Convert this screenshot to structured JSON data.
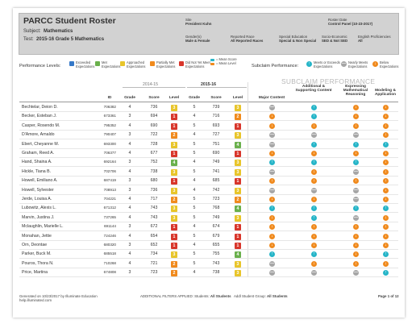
{
  "header": {
    "title": "PARCC Student Roster",
    "subject_label": "Subject:",
    "subject_value": "Mathematics",
    "test_label": "Test:",
    "test_value": "2015-16 Grade 5 Mathematics",
    "site_label": "Site",
    "site_value": "President Kuhn",
    "roster_label": "Roster Date",
    "roster_value": "Control Panel (10-23-2017)",
    "gender_label": "Gender(s)",
    "gender_value": "Male & Female",
    "race_label": "Reported Race",
    "race_value": "All Reported Races",
    "sped_label": "Special Education",
    "sped_value": "Special & Non Special",
    "ses_label": "Socio-Economic",
    "ses_value": "SED & Not SED",
    "elp_label": "English Proficiencies",
    "elp_value": "All"
  },
  "legend": {
    "levels_label": "Performance Levels:",
    "items": [
      {
        "label": "Exceeded Expectations",
        "color": "#3578c8"
      },
      {
        "label": "Met Expectations",
        "color": "#6ab04c"
      },
      {
        "label": "Approached Expectations",
        "color": "#e8c52a"
      },
      {
        "label": "Partially Met Expectations",
        "color": "#f08a1d"
      },
      {
        "label": "Did Not Yet Meet Expectations",
        "color": "#d8362b"
      }
    ],
    "mean_score": "= Mean Score",
    "mean_level": "= Mean Level",
    "subclaim_label": "Subclaim Performance:",
    "sub_items": [
      {
        "label": "Meets or Exceeds Expectations",
        "color": "#26b5c8",
        "glyph": "↑"
      },
      {
        "label": "Nearly Meets Expectations",
        "color": "#a6a6a6",
        "glyph": "—"
      },
      {
        "label": "Below Expectations",
        "color": "#f08a1d",
        "glyph": "↓"
      }
    ]
  },
  "table": {
    "subclaim_title": "SUBCLAIM PERFORMANCE",
    "year1": "2014-15",
    "year2": "2015-16",
    "col_id": "ID",
    "col_grade": "Grade",
    "col_score": "Score",
    "col_level": "Level",
    "col_major": "Major Content",
    "col_additional": "Additional & Supporting Content",
    "col_expressing": "Expressing Mathematical Reasoning",
    "col_modeling": "Modeling & Application",
    "rows": [
      {
        "name": "Bechtelar, Deion D.",
        "id": "706382",
        "g1": "4",
        "s1": "736",
        "l1": "3",
        "g2": "5",
        "s2": "739",
        "l2": "3",
        "sc": [
          "n",
          "u",
          "d",
          "d"
        ]
      },
      {
        "name": "Becker, Esteban J.",
        "id": "673361",
        "g1": "3",
        "s1": "694",
        "l1": "1",
        "g2": "4",
        "s2": "716",
        "l2": "2",
        "sc": [
          "d",
          "u",
          "d",
          "d"
        ]
      },
      {
        "name": "Casper, Rosendo M.",
        "id": "795352",
        "g1": "4",
        "s1": "690",
        "l1": "1",
        "g2": "5",
        "s2": "693",
        "l2": "1",
        "sc": [
          "d",
          "d",
          "d",
          "d"
        ]
      },
      {
        "name": "D'Amore, Arnaldo",
        "id": "790407",
        "g1": "3",
        "s1": "722",
        "l1": "2",
        "g2": "4",
        "s2": "727",
        "l2": "3",
        "sc": [
          "n",
          "n",
          "n",
          "d"
        ]
      },
      {
        "name": "Ebert, Cheyanne M.",
        "id": "693300",
        "g1": "4",
        "s1": "728",
        "l1": "3",
        "g2": "5",
        "s2": "751",
        "l2": "4",
        "sc": [
          "n",
          "u",
          "u",
          "u"
        ]
      },
      {
        "name": "Graham, Reed A.",
        "id": "706377",
        "g1": "4",
        "s1": "677",
        "l1": "1",
        "g2": "5",
        "s2": "690",
        "l2": "1",
        "sc": [
          "d",
          "d",
          "d",
          "d"
        ]
      },
      {
        "name": "Hand, Shaina A.",
        "id": "692164",
        "g1": "3",
        "s1": "752",
        "l1": "4",
        "g2": "4",
        "s2": "749",
        "l2": "3",
        "sc": [
          "u",
          "u",
          "u",
          "d"
        ]
      },
      {
        "name": "Hickle, Tiana B.",
        "id": "702706",
        "g1": "4",
        "s1": "738",
        "l1": "3",
        "g2": "5",
        "s2": "741",
        "l2": "3",
        "sc": [
          "n",
          "d",
          "n",
          "d"
        ]
      },
      {
        "name": "Howell, Emiliano A.",
        "id": "687419",
        "g1": "3",
        "s1": "680",
        "l1": "1",
        "g2": "4",
        "s2": "685",
        "l2": "1",
        "sc": [
          "d",
          "d",
          "d",
          "d"
        ]
      },
      {
        "name": "Howell, Sylvester",
        "id": "708913",
        "g1": "3",
        "s1": "736",
        "l1": "3",
        "g2": "4",
        "s2": "742",
        "l2": "3",
        "sc": [
          "n",
          "n",
          "n",
          "d"
        ]
      },
      {
        "name": "Jerde, Louisa A.",
        "id": "704221",
        "g1": "4",
        "s1": "717",
        "l1": "2",
        "g2": "5",
        "s2": "723",
        "l2": "2",
        "sc": [
          "d",
          "d",
          "n",
          "d"
        ]
      },
      {
        "name": "Lubowitz, Alexis L.",
        "id": "671312",
        "g1": "4",
        "s1": "743",
        "l1": "3",
        "g2": "5",
        "s2": "768",
        "l2": "4",
        "sc": [
          "u",
          "u",
          "u",
          "u"
        ]
      },
      {
        "name": "Marvin, Justina J.",
        "id": "737265",
        "g1": "4",
        "s1": "743",
        "l1": "3",
        "g2": "5",
        "s2": "749",
        "l2": "3",
        "sc": [
          "d",
          "u",
          "n",
          "d"
        ]
      },
      {
        "name": "Mclaughlin, Marielle L.",
        "id": "691144",
        "g1": "3",
        "s1": "672",
        "l1": "1",
        "g2": "4",
        "s2": "674",
        "l2": "1",
        "sc": [
          "d",
          "d",
          "d",
          "d"
        ]
      },
      {
        "name": "Monahan, Jettie",
        "id": "724246",
        "g1": "4",
        "s1": "654",
        "l1": "1",
        "g2": "5",
        "s2": "679",
        "l2": "1",
        "sc": [
          "d",
          "d",
          "d",
          "d"
        ]
      },
      {
        "name": "Orn, Deontae",
        "id": "680320",
        "g1": "3",
        "s1": "652",
        "l1": "1",
        "g2": "4",
        "s2": "655",
        "l2": "1",
        "sc": [
          "d",
          "d",
          "d",
          "d"
        ]
      },
      {
        "name": "Parker, Buck M.",
        "id": "685518",
        "g1": "4",
        "s1": "734",
        "l1": "3",
        "g2": "5",
        "s2": "755",
        "l2": "4",
        "sc": [
          "u",
          "u",
          "d",
          "u"
        ]
      },
      {
        "name": "Pouros, Thora N.",
        "id": "710268",
        "g1": "4",
        "s1": "721",
        "l1": "2",
        "g2": "5",
        "s2": "743",
        "l2": "3",
        "sc": [
          "n",
          "d",
          "d",
          "d"
        ]
      },
      {
        "name": "Price, Martina",
        "id": "674808",
        "g1": "3",
        "s1": "723",
        "l1": "2",
        "g2": "4",
        "s2": "738",
        "l2": "3",
        "sc": [
          "n",
          "n",
          "n",
          "u"
        ]
      }
    ]
  },
  "footer": {
    "generated": "Generated on 10/23/2017 by Illuminate Education",
    "help": "help.illuminated.com",
    "filters_label": "ADDITIONAL FILTERS APPLIED:",
    "students_label": "Students:",
    "students_value": "All Students",
    "group_label": "Addl Student Group:",
    "group_value": "All Students",
    "page": "Page 1 of 12"
  }
}
